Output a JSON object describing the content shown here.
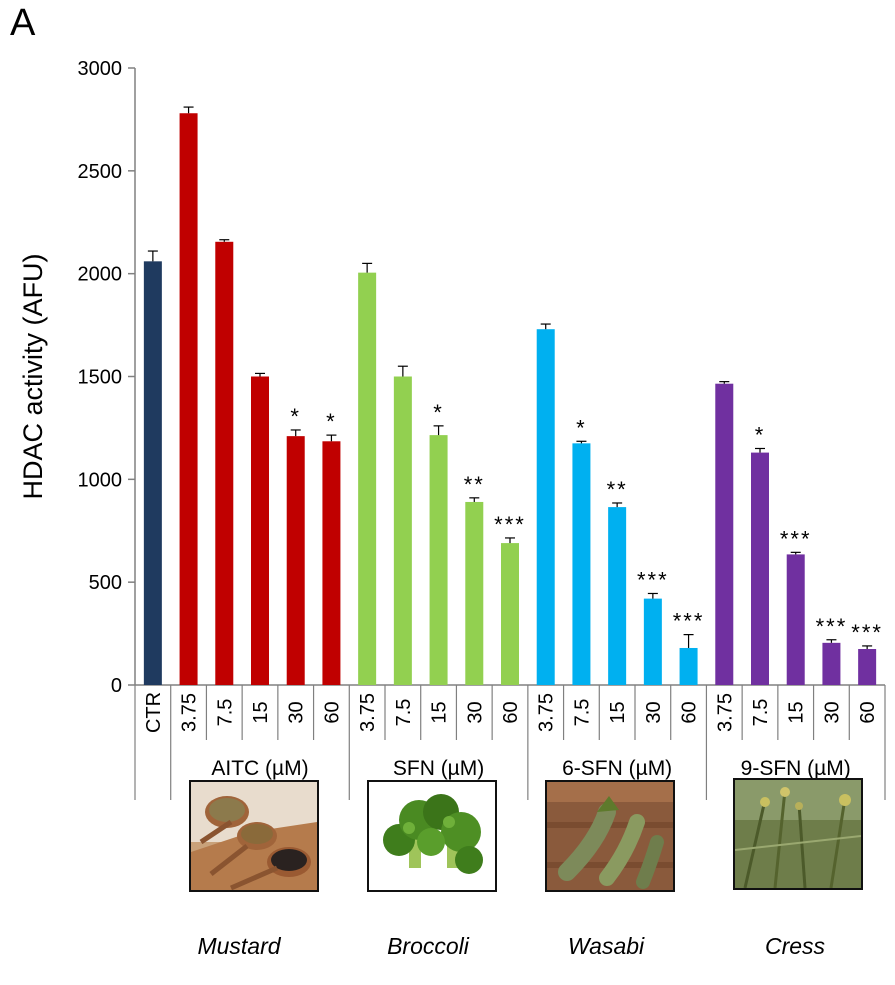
{
  "panel_label": "A",
  "chart_data": {
    "type": "bar",
    "ylabel": "HDAC activity (AFU)",
    "ylim": [
      0,
      3000
    ],
    "yticks": [
      0,
      500,
      1000,
      1500,
      2000,
      2500,
      3000
    ],
    "grid": false,
    "bars": [
      {
        "group": "",
        "label": "CTR",
        "value": 2060,
        "error": 50,
        "sig": "",
        "color": "#1f3a5f"
      },
      {
        "group": "AITC (µM)",
        "label": "3.75",
        "value": 2780,
        "error": 30,
        "sig": "",
        "color": "#c00000"
      },
      {
        "group": "AITC (µM)",
        "label": "7.5",
        "value": 2155,
        "error": 10,
        "sig": "",
        "color": "#c00000"
      },
      {
        "group": "AITC (µM)",
        "label": "15",
        "value": 1500,
        "error": 15,
        "sig": "",
        "color": "#c00000"
      },
      {
        "group": "AITC (µM)",
        "label": "30",
        "value": 1210,
        "error": 30,
        "sig": "*",
        "color": "#c00000"
      },
      {
        "group": "AITC (µM)",
        "label": "60",
        "value": 1185,
        "error": 30,
        "sig": "*",
        "color": "#c00000"
      },
      {
        "group": "SFN (µM)",
        "label": "3.75",
        "value": 2005,
        "error": 45,
        "sig": "",
        "color": "#92d050"
      },
      {
        "group": "SFN (µM)",
        "label": "7.5",
        "value": 1500,
        "error": 50,
        "sig": "",
        "color": "#92d050"
      },
      {
        "group": "SFN (µM)",
        "label": "15",
        "value": 1215,
        "error": 45,
        "sig": "*",
        "color": "#92d050"
      },
      {
        "group": "SFN (µM)",
        "label": "30",
        "value": 890,
        "error": 20,
        "sig": "**",
        "color": "#92d050"
      },
      {
        "group": "SFN (µM)",
        "label": "60",
        "value": 690,
        "error": 25,
        "sig": "***",
        "color": "#92d050"
      },
      {
        "group": "6-SFN (µM)",
        "label": "3.75",
        "value": 1730,
        "error": 25,
        "sig": "",
        "color": "#00b0f0"
      },
      {
        "group": "6-SFN (µM)",
        "label": "7.5",
        "value": 1175,
        "error": 10,
        "sig": "*",
        "color": "#00b0f0"
      },
      {
        "group": "6-SFN (µM)",
        "label": "15",
        "value": 865,
        "error": 20,
        "sig": "**",
        "color": "#00b0f0"
      },
      {
        "group": "6-SFN (µM)",
        "label": "30",
        "value": 420,
        "error": 25,
        "sig": "***",
        "color": "#00b0f0"
      },
      {
        "group": "6-SFN (µM)",
        "label": "60",
        "value": 180,
        "error": 65,
        "sig": "***",
        "color": "#00b0f0"
      },
      {
        "group": "9-SFN (µM)",
        "label": "3.75",
        "value": 1465,
        "error": 10,
        "sig": "",
        "color": "#7030a0"
      },
      {
        "group": "9-SFN (µM)",
        "label": "7.5",
        "value": 1130,
        "error": 20,
        "sig": "*",
        "color": "#7030a0"
      },
      {
        "group": "9-SFN (µM)",
        "label": "15",
        "value": 635,
        "error": 10,
        "sig": "***",
        "color": "#7030a0"
      },
      {
        "group": "9-SFN (µM)",
        "label": "30",
        "value": 205,
        "error": 15,
        "sig": "***",
        "color": "#7030a0"
      },
      {
        "group": "9-SFN (µM)",
        "label": "60",
        "value": 175,
        "error": 15,
        "sig": "***",
        "color": "#7030a0"
      }
    ],
    "groups": [
      "AITC (µM)",
      "SFN (µM)",
      "6-SFN (µM)",
      "9-SFN (µM)"
    ]
  },
  "sources": [
    {
      "name": "Mustard",
      "image": "mustard-seeds-in-wooden-spoons-photo"
    },
    {
      "name": "Broccoli",
      "image": "broccoli-florets-photo"
    },
    {
      "name": "Wasabi",
      "image": "wasabi-roots-photo"
    },
    {
      "name": "Cress",
      "image": "cress-plants-photo"
    }
  ]
}
